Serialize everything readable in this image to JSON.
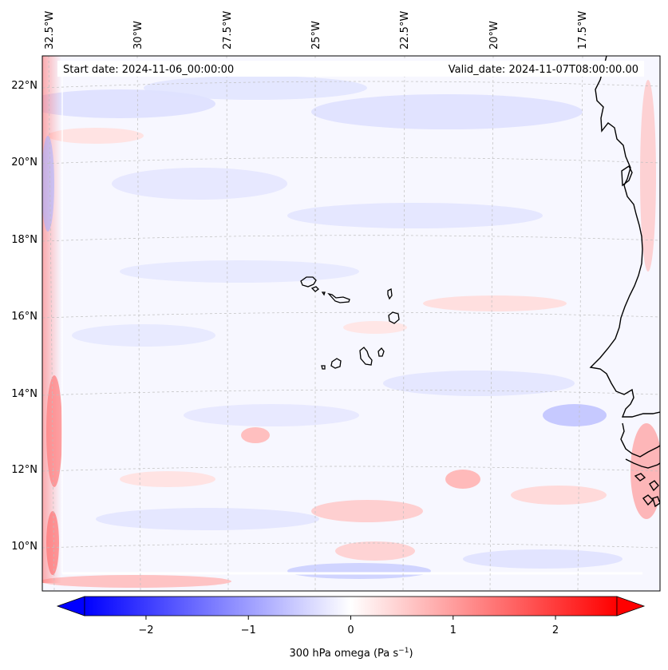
{
  "header": {
    "start_label": "Start date: 2024-11-06_00:00:00",
    "valid_label": "Valid_date: 2024-11-07T08:00:00.00"
  },
  "map": {
    "projection": "lambert-conformal",
    "lon_labels": [
      "32.5°W",
      "30°W",
      "27.5°W",
      "25°W",
      "22.5°W",
      "20°W",
      "17.5°W"
    ],
    "lat_labels": [
      "22°N",
      "20°N",
      "18°N",
      "16°N",
      "14°N",
      "12°N",
      "10°N"
    ],
    "gridlines": "dashed-grey",
    "field": "300 hPa omega",
    "features": [
      "Cape Verde islands",
      "West African coastline"
    ]
  },
  "colorbar": {
    "label_main": "300 hPa omega (Pa s",
    "label_exp": "−1",
    "label_close": ")",
    "ticks": [
      "−2",
      "−1",
      "0",
      "1",
      "2"
    ],
    "tick_values": [
      -2,
      -1,
      0,
      1,
      2
    ],
    "range": [
      -2.6,
      2.6
    ],
    "colormap": "bwr",
    "extend": "both",
    "color_low": "#0000ff",
    "color_mid": "#ffffff",
    "color_high": "#ff0000"
  }
}
